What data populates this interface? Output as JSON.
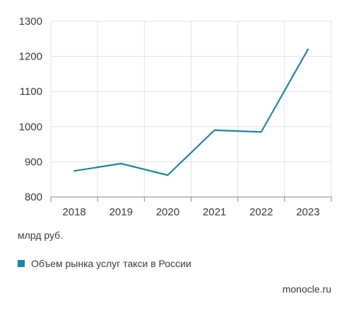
{
  "chart_data": {
    "type": "line",
    "x": [
      "2018",
      "2019",
      "2020",
      "2021",
      "2022",
      "2023"
    ],
    "series": [
      {
        "name": "Объем рынка услуг такси в России",
        "values": [
          874,
          895,
          862,
          990,
          985,
          1220
        ],
        "color": "#1d86a4"
      }
    ],
    "ylim": [
      800,
      1300
    ],
    "yticks": [
      800,
      900,
      1000,
      1100,
      1200,
      1300
    ],
    "ylabel": "млрд руб.",
    "grid": true,
    "legend_position": "bottom-left"
  },
  "footer": {
    "source": "monocle.ru"
  },
  "colors": {
    "line": "#1d86a4",
    "grid": "#e2e2e2",
    "axis": "#8a8a8a"
  }
}
